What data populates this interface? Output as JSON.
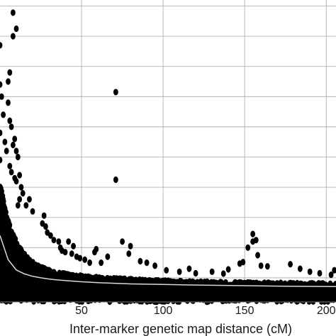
{
  "chart_data": {
    "type": "scatter",
    "xlabel": "Inter-marker genetic map distance (cM)",
    "ylabel": "",
    "x_ticks": [
      50,
      100,
      150,
      200
    ],
    "x_tick_labels": [
      "50",
      "100",
      "150",
      "200"
    ],
    "xlim": [
      0,
      206
    ],
    "ylim": [
      0,
      1
    ],
    "y_gridlines": [
      0.08,
      0.18,
      0.28,
      0.38,
      0.48,
      0.58,
      0.68,
      0.78,
      0.88,
      0.98
    ],
    "grid": true,
    "legend": "none",
    "colors": {
      "points": "#000000",
      "grid": "#a6a6a6",
      "axis": "#7f7f7f",
      "curve": "#d9d9d9"
    },
    "trend_curve": {
      "x": [
        0,
        5,
        10,
        15,
        20,
        25,
        30,
        35,
        40,
        45,
        50,
        60,
        70,
        80,
        100,
        120,
        150,
        180,
        206
      ],
      "y": [
        0.22,
        0.14,
        0.106,
        0.093,
        0.085,
        0.08,
        0.076,
        0.073,
        0.071,
        0.069,
        0.067,
        0.064,
        0.062,
        0.06,
        0.058,
        0.056,
        0.054,
        0.052,
        0.051
      ]
    },
    "outliers": [
      [
        8,
        0.958
      ],
      [
        10,
        0.905
      ],
      [
        8,
        0.88
      ],
      [
        6,
        0.76
      ],
      [
        5,
        0.73
      ],
      [
        5,
        0.66
      ],
      [
        6,
        0.6
      ],
      [
        7,
        0.58
      ],
      [
        9,
        0.54
      ],
      [
        8,
        0.52
      ],
      [
        10,
        0.5
      ],
      [
        11,
        0.48
      ],
      [
        6,
        0.45
      ],
      [
        7,
        0.43
      ],
      [
        9,
        0.41
      ],
      [
        10,
        0.4
      ],
      [
        3,
        0.53
      ],
      [
        4,
        0.5
      ],
      [
        12,
        0.42
      ],
      [
        13,
        0.38
      ],
      [
        14,
        0.36
      ],
      [
        12,
        0.34
      ],
      [
        11,
        0.32
      ],
      [
        0,
        0.85
      ],
      [
        0,
        0.72
      ],
      [
        1,
        0.68
      ],
      [
        2,
        0.62
      ],
      [
        0,
        0.56
      ],
      [
        0,
        0.47
      ],
      [
        18,
        0.34
      ],
      [
        16,
        0.32
      ],
      [
        20,
        0.3
      ],
      [
        27,
        0.286
      ],
      [
        26,
        0.26
      ],
      [
        28,
        0.25
      ],
      [
        29,
        0.23
      ],
      [
        31,
        0.22
      ],
      [
        33,
        0.205
      ],
      [
        36,
        0.2
      ],
      [
        37,
        0.18
      ],
      [
        38,
        0.17
      ],
      [
        40,
        0.165
      ],
      [
        44,
        0.16
      ],
      [
        47,
        0.15
      ],
      [
        49,
        0.145
      ],
      [
        52,
        0.14
      ],
      [
        55,
        0.13
      ],
      [
        71,
        0.695
      ],
      [
        71,
        0.405
      ],
      [
        75,
        0.2
      ],
      [
        80,
        0.185
      ],
      [
        79,
        0.16
      ],
      [
        86,
        0.135
      ],
      [
        90,
        0.13
      ],
      [
        95,
        0.12
      ],
      [
        102,
        0.105
      ],
      [
        110,
        0.1
      ],
      [
        120,
        0.095
      ],
      [
        155,
        0.225
      ],
      [
        157,
        0.205
      ],
      [
        155,
        0.2
      ],
      [
        152,
        0.18
      ],
      [
        158,
        0.155
      ],
      [
        149,
        0.132
      ],
      [
        147,
        0.127
      ],
      [
        160,
        0.12
      ],
      [
        164,
        0.118
      ],
      [
        178,
        0.125
      ],
      [
        184,
        0.11
      ],
      [
        190,
        0.1
      ],
      [
        196,
        0.095
      ],
      [
        205,
        0.105
      ],
      [
        203,
        0.09
      ],
      [
        130,
        0.1
      ],
      [
        137,
        0.094
      ],
      [
        140,
        0.108
      ],
      [
        116,
        0.11
      ],
      [
        62,
        0.13
      ],
      [
        66,
        0.15
      ],
      [
        59,
        0.175
      ],
      [
        58,
        0.165
      ],
      [
        45,
        0.185
      ],
      [
        42,
        0.2
      ]
    ]
  }
}
